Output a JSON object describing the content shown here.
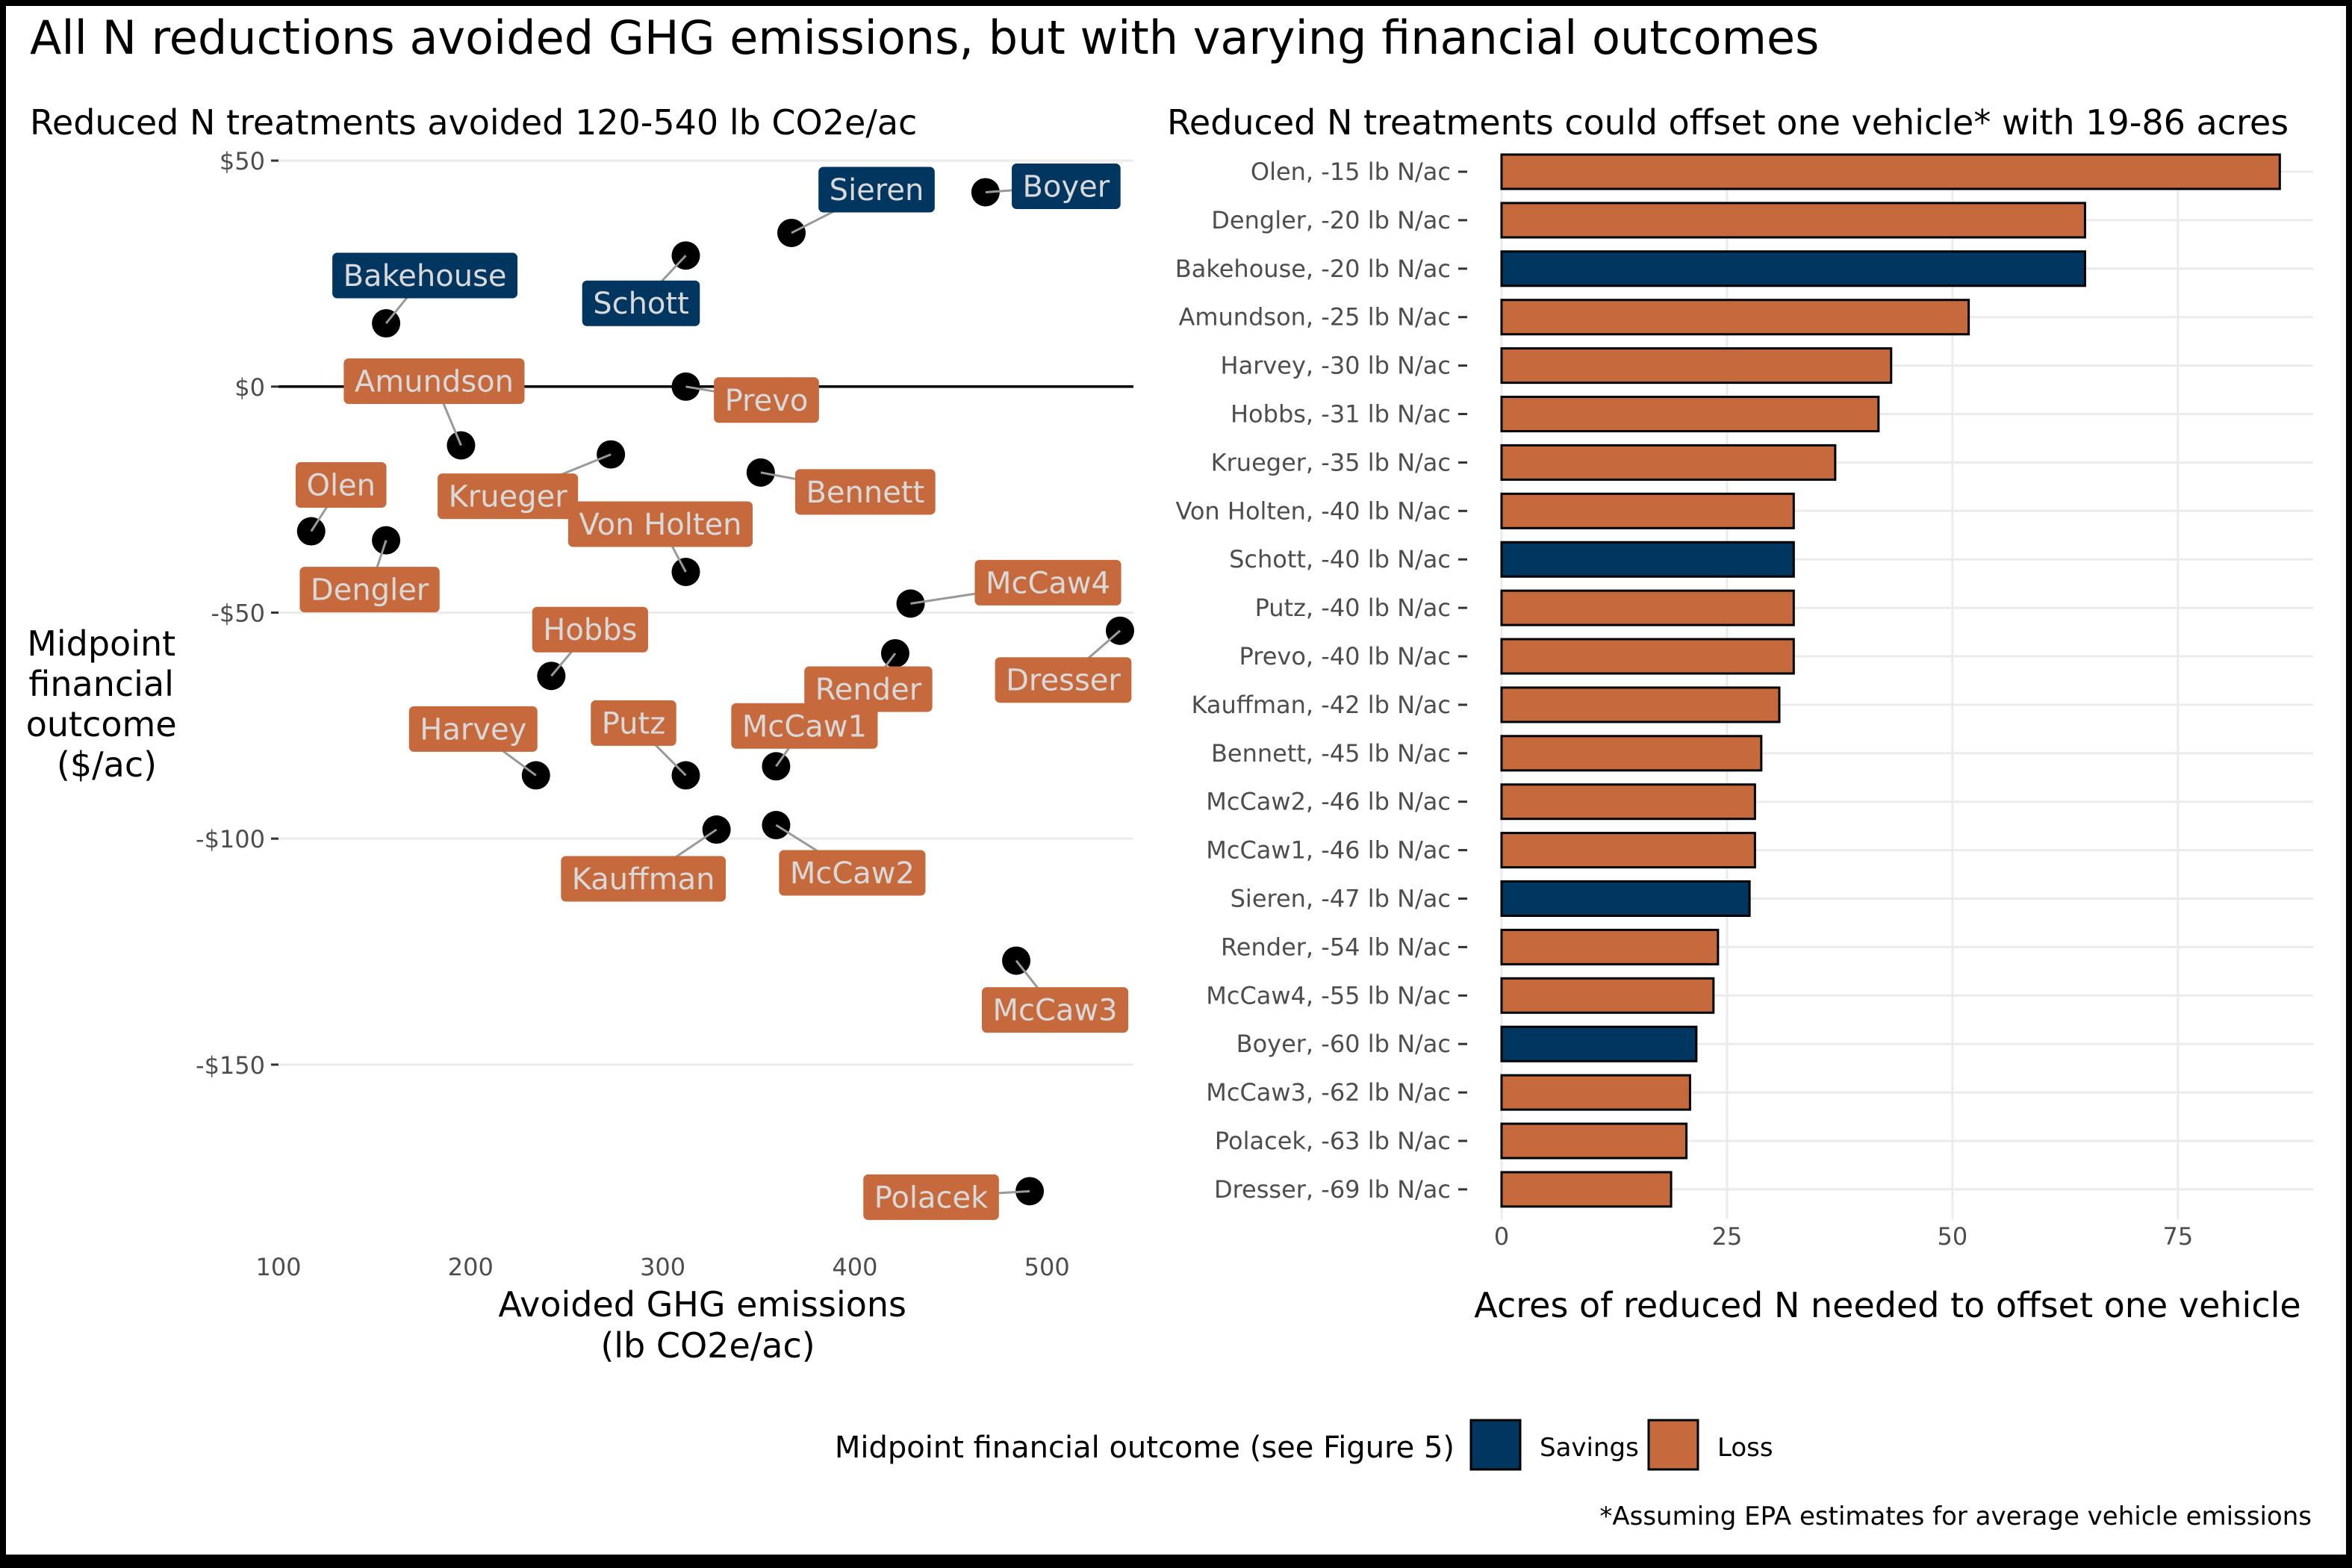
{
  "title": "All N reductions avoided GHG emissions, but with varying financial outcomes",
  "footnote": "*Assuming EPA estimates for average vehicle emissions",
  "legend": {
    "title": "Midpoint financial outcome (see Figure 5)",
    "items": [
      {
        "label": "Savings",
        "color": "#003660"
      },
      {
        "label": "Loss",
        "color": "#C66A3D"
      }
    ]
  },
  "colors": {
    "savings": "#003660",
    "loss": "#C66A3D",
    "grid": "#ebebeb",
    "point": "#000000"
  },
  "chart_data": [
    {
      "type": "scatter",
      "title": "Reduced N treatments avoided 120-540 lb CO2e/ac",
      "xlabel": "Avoided GHG emissions (lb CO2e/ac)",
      "xlabel_lines": [
        "Avoided GHG emissions",
        "(lb CO2e/ac)"
      ],
      "ylabel": "Midpoint financial outcome ($/ac)",
      "ylabel_lines": [
        "Midpoint",
        "financial",
        "outcome",
        "($/ac)"
      ],
      "xlim": [
        100,
        545
      ],
      "ylim": [
        -190,
        52
      ],
      "xticks": [
        100,
        200,
        300,
        400,
        500
      ],
      "yticks": [
        50,
        0,
        -50,
        -100,
        -150
      ],
      "ytick_labels": [
        "$50",
        "$0",
        "-$50",
        "-$100",
        "-$150"
      ],
      "hline_y": 0,
      "grid": true,
      "points": [
        {
          "label": "Olen",
          "x": 117,
          "y": -32,
          "group": "Loss"
        },
        {
          "label": "Dengler",
          "x": 156,
          "y": -34,
          "group": "Loss"
        },
        {
          "label": "Bakehouse",
          "x": 156,
          "y": 14,
          "group": "Savings"
        },
        {
          "label": "Amundson",
          "x": 195,
          "y": -13,
          "group": "Loss"
        },
        {
          "label": "Harvey",
          "x": 234,
          "y": -86,
          "group": "Loss"
        },
        {
          "label": "Hobbs",
          "x": 242,
          "y": -64,
          "group": "Loss"
        },
        {
          "label": "Krueger",
          "x": 273,
          "y": -15,
          "group": "Loss"
        },
        {
          "label": "Von Holten",
          "x": 312,
          "y": -41,
          "group": "Loss"
        },
        {
          "label": "Schott",
          "x": 312,
          "y": 29,
          "group": "Savings"
        },
        {
          "label": "Putz",
          "x": 312,
          "y": -86,
          "group": "Loss"
        },
        {
          "label": "Prevo",
          "x": 312,
          "y": 0,
          "group": "Loss"
        },
        {
          "label": "Kauffman",
          "x": 328,
          "y": -98,
          "group": "Loss"
        },
        {
          "label": "Bennett",
          "x": 351,
          "y": -19,
          "group": "Loss"
        },
        {
          "label": "McCaw2",
          "x": 359,
          "y": -97,
          "group": "Loss"
        },
        {
          "label": "McCaw1",
          "x": 359,
          "y": -84,
          "group": "Loss"
        },
        {
          "label": "Sieren",
          "x": 367,
          "y": 34,
          "group": "Savings"
        },
        {
          "label": "Render",
          "x": 421,
          "y": -59,
          "group": "Loss"
        },
        {
          "label": "McCaw4",
          "x": 429,
          "y": -48,
          "group": "Loss"
        },
        {
          "label": "Boyer",
          "x": 468,
          "y": 43,
          "group": "Savings"
        },
        {
          "label": "McCaw3",
          "x": 484,
          "y": -127,
          "group": "Loss"
        },
        {
          "label": "Polacek",
          "x": 491,
          "y": -178,
          "group": "Loss"
        },
        {
          "label": "Dresser",
          "x": 538,
          "y": -54,
          "group": "Loss"
        }
      ]
    },
    {
      "type": "bar",
      "orientation": "horizontal",
      "title": "Reduced N treatments could offset one vehicle* with 19-86 acres",
      "xlabel": "Acres of reduced N needed to offset one vehicle",
      "ylabel": "",
      "xlim": [
        0,
        90
      ],
      "xticks": [
        0,
        25,
        50,
        75
      ],
      "grid": true,
      "categories": [
        "Olen, -15 lb N/ac",
        "Dengler, -20 lb N/ac",
        "Bakehouse, -20 lb N/ac",
        "Amundson, -25 lb N/ac",
        "Harvey, -30 lb N/ac",
        "Hobbs, -31 lb N/ac",
        "Krueger, -35 lb N/ac",
        "Von Holten, -40 lb N/ac",
        "Schott, -40 lb N/ac",
        "Putz, -40 lb N/ac",
        "Prevo, -40 lb N/ac",
        "Kauffman, -42 lb N/ac",
        "Bennett, -45 lb N/ac",
        "McCaw2, -46 lb N/ac",
        "McCaw1, -46 lb N/ac",
        "Sieren, -47 lb N/ac",
        "Render, -54 lb N/ac",
        "McCaw4, -55 lb N/ac",
        "Boyer, -60 lb N/ac",
        "McCaw3, -62 lb N/ac",
        "Polacek, -63 lb N/ac",
        "Dresser, -69 lb N/ac"
      ],
      "values": [
        86.3,
        64.7,
        64.7,
        51.8,
        43.2,
        41.8,
        37.0,
        32.4,
        32.4,
        32.4,
        32.4,
        30.8,
        28.8,
        28.1,
        28.1,
        27.5,
        24.0,
        23.5,
        21.6,
        20.9,
        20.5,
        18.8
      ],
      "groups": [
        "Loss",
        "Loss",
        "Savings",
        "Loss",
        "Loss",
        "Loss",
        "Loss",
        "Loss",
        "Savings",
        "Loss",
        "Loss",
        "Loss",
        "Loss",
        "Loss",
        "Loss",
        "Savings",
        "Loss",
        "Loss",
        "Savings",
        "Loss",
        "Loss",
        "Loss"
      ]
    }
  ]
}
